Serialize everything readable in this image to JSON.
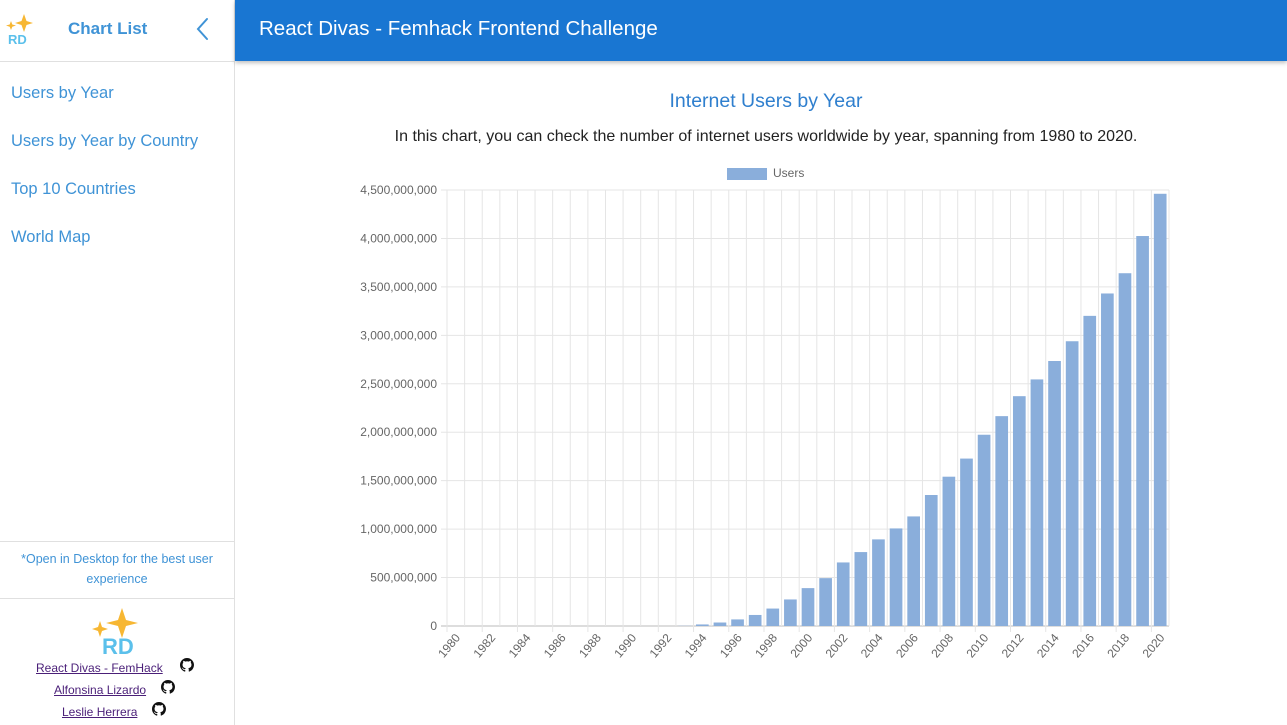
{
  "sidebar": {
    "title": "Chart List",
    "logo_text": "RD",
    "nav_items": [
      {
        "label": "Users by Year"
      },
      {
        "label": "Users by Year by Country"
      },
      {
        "label": "Top 10 Countries"
      },
      {
        "label": "World Map"
      }
    ],
    "note": "*Open in Desktop for the best user experience",
    "footer_links": [
      {
        "label": "React Divas - FemHack",
        "icon": "github-icon"
      },
      {
        "label": "Alfonsina Lizardo",
        "icon": "github-icon"
      },
      {
        "label": "Leslie Herrera",
        "icon": "github-icon"
      }
    ]
  },
  "header": {
    "title": "React Divas - Femhack Frontend Challenge"
  },
  "main": {
    "chart_title": "Internet Users by Year",
    "description": "In this chart, you can check the number of internet users worldwide by year, spanning from 1980 to 2020."
  },
  "colors": {
    "header_bg": "#1976d2",
    "link_blue": "#3f93d6",
    "bar_fill": "#8aaedb"
  },
  "chart_data": {
    "type": "bar",
    "legend_position": "top",
    "series": [
      {
        "name": "Users",
        "values": [
          0,
          0,
          0,
          0,
          0,
          0,
          0,
          0,
          0,
          0,
          0,
          0,
          0,
          2000000,
          16000000,
          36000000,
          68000000,
          114000000,
          180000000,
          274000000,
          391000000,
          494000000,
          656000000,
          763000000,
          894000000,
          1007000000,
          1131000000,
          1352000000,
          1541000000,
          1728000000,
          1974000000,
          2166000000,
          2372000000,
          2545000000,
          2735000000,
          2939000000,
          3201000000,
          3432000000,
          3641000000,
          4025000000,
          4461000000
        ]
      }
    ],
    "x": [
      1980,
      1981,
      1982,
      1983,
      1984,
      1985,
      1986,
      1987,
      1988,
      1989,
      1990,
      1991,
      1992,
      1993,
      1994,
      1995,
      1996,
      1997,
      1998,
      1999,
      2000,
      2001,
      2002,
      2003,
      2004,
      2005,
      2006,
      2007,
      2008,
      2009,
      2010,
      2011,
      2012,
      2013,
      2014,
      2015,
      2016,
      2017,
      2018,
      2019,
      2020
    ],
    "x_tick_labels": [
      "1980",
      "1982",
      "1984",
      "1986",
      "1988",
      "1990",
      "1992",
      "1994",
      "1996",
      "1998",
      "2000",
      "2002",
      "2004",
      "2006",
      "2008",
      "2010",
      "2012",
      "2014",
      "2016",
      "2018",
      "2020"
    ],
    "y_tick_labels": [
      "0",
      "500,000,000",
      "1,000,000,000",
      "1,500,000,000",
      "2,000,000,000",
      "2,500,000,000",
      "3,000,000,000",
      "3,500,000,000",
      "4,000,000,000",
      "4,500,000,000"
    ],
    "ylim": [
      0,
      4500000000
    ],
    "grid": true
  }
}
